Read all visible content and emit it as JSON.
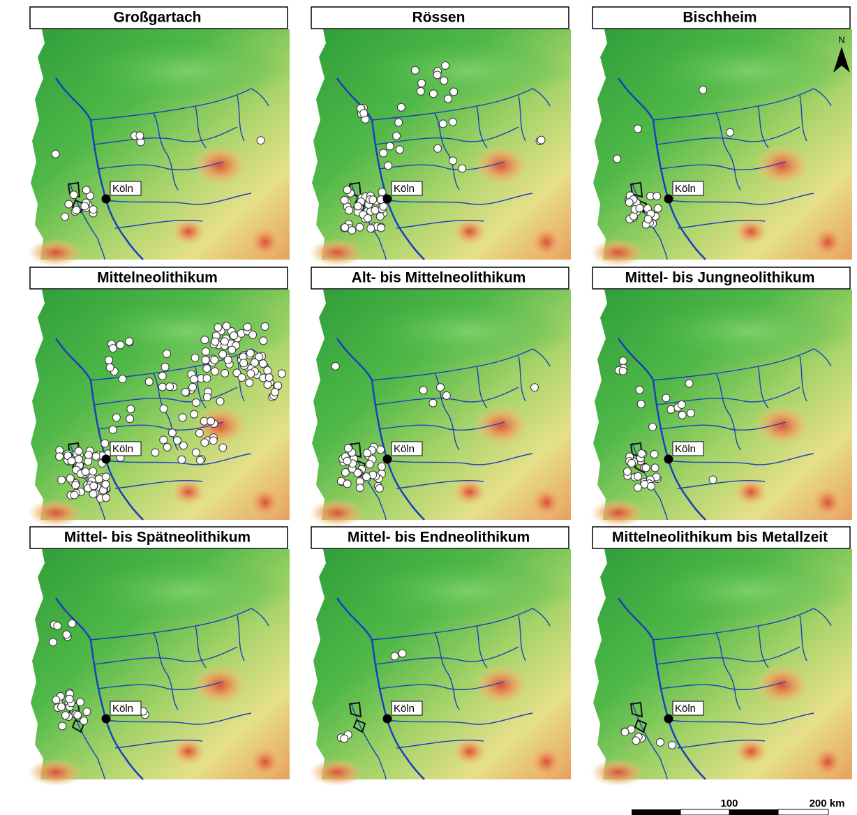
{
  "panels": [
    {
      "title": "Großgartach"
    },
    {
      "title": "Rössen"
    },
    {
      "title": "Bischheim"
    },
    {
      "title": "Mittelneolithikum"
    },
    {
      "title": "Alt- bis Mittelneolithikum"
    },
    {
      "title": "Mittel- bis Jungneolithikum"
    },
    {
      "title": "Mittel- bis Spätneolithikum"
    },
    {
      "title": "Mittel- bis Endneolithikum"
    },
    {
      "title": "Mittelneolithikum bis Metallzeit"
    }
  ],
  "city_label": "Köln",
  "north_label": "N",
  "scale_bar": {
    "mid_label": "100",
    "end_label": "200 km"
  }
}
